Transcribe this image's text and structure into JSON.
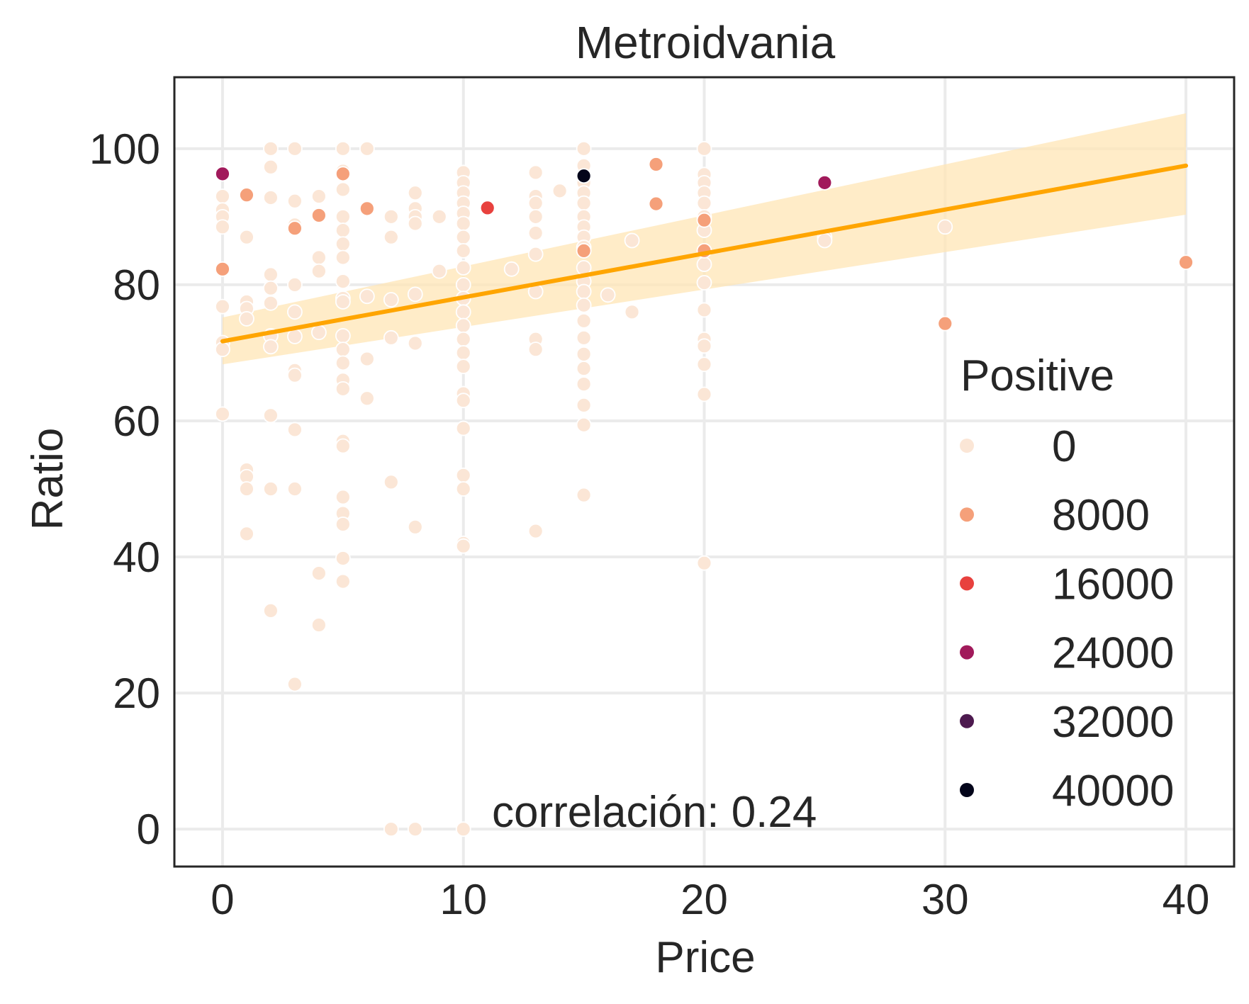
{
  "chart_data": {
    "type": "scatter",
    "title": "Metroidvania",
    "xlabel": "Price",
    "ylabel": "Ratio",
    "xlim": [
      -2,
      42
    ],
    "ylim": [
      -5.5,
      110.5
    ],
    "xticks": [
      0,
      10,
      20,
      30,
      40
    ],
    "yticks": [
      0,
      20,
      40,
      60,
      80,
      100
    ],
    "grid": true,
    "annotation": "correlación: 0.24",
    "colors": {
      "c0": "#fbe6d6",
      "c8000": "#f5a07a",
      "c16000": "#e8413e",
      "c24000": "#a11a5b",
      "c32000": "#4d1a4f",
      "c40000": "#03051a",
      "line": "#ffa500",
      "band": "#ffe6b5",
      "grid": "#ebebeb",
      "axis": "#262626"
    },
    "legend": {
      "title": "Positive",
      "position": "lower-right",
      "entries": [
        {
          "label": "0",
          "color": "#fbe6d6"
        },
        {
          "label": "8000",
          "color": "#f5a07a"
        },
        {
          "label": "16000",
          "color": "#e8413e"
        },
        {
          "label": "24000",
          "color": "#a11a5b"
        },
        {
          "label": "32000",
          "color": "#4d1a4f"
        },
        {
          "label": "40000",
          "color": "#03051a"
        }
      ]
    },
    "regression": {
      "x": [
        0,
        40
      ],
      "y": [
        71.7,
        97.5
      ],
      "ci_lower": [
        68.3,
        90.3
      ],
      "ci_upper": [
        75.2,
        105.2
      ]
    },
    "points": [
      [
        0,
        96.3,
        "c24000"
      ],
      [
        0,
        93,
        "c0"
      ],
      [
        0,
        91,
        "c0"
      ],
      [
        0,
        90,
        "c0"
      ],
      [
        0,
        88.5,
        "c0"
      ],
      [
        0,
        82.3,
        "c8000"
      ],
      [
        0,
        76.8,
        "c0"
      ],
      [
        0,
        71.5,
        "c0"
      ],
      [
        0,
        70.5,
        "c0"
      ],
      [
        0,
        61,
        "c0"
      ],
      [
        1,
        93.2,
        "c8000"
      ],
      [
        1,
        87,
        "c0"
      ],
      [
        1,
        77.5,
        "c0"
      ],
      [
        1,
        76.5,
        "c0"
      ],
      [
        1,
        75,
        "c0"
      ],
      [
        1,
        52.8,
        "c0"
      ],
      [
        1,
        51.8,
        "c0"
      ],
      [
        1,
        50,
        "c0"
      ],
      [
        1,
        43.4,
        "c0"
      ],
      [
        2,
        100,
        "c0"
      ],
      [
        2,
        97.3,
        "c0"
      ],
      [
        2,
        92.8,
        "c0"
      ],
      [
        2,
        81.5,
        "c0"
      ],
      [
        2,
        79.5,
        "c0"
      ],
      [
        2,
        77.3,
        "c0"
      ],
      [
        2,
        72.5,
        "c0"
      ],
      [
        2,
        70.9,
        "c0"
      ],
      [
        2,
        60.8,
        "c0"
      ],
      [
        2,
        50,
        "c0"
      ],
      [
        2,
        32.1,
        "c0"
      ],
      [
        3,
        100,
        "c0"
      ],
      [
        3,
        92.3,
        "c0"
      ],
      [
        3,
        88.8,
        "c0"
      ],
      [
        3,
        88.3,
        "c8000"
      ],
      [
        3,
        80,
        "c0"
      ],
      [
        3,
        76,
        "c0"
      ],
      [
        3,
        72.4,
        "c0"
      ],
      [
        3,
        67.4,
        "c0"
      ],
      [
        3,
        66.7,
        "c0"
      ],
      [
        3,
        58.7,
        "c0"
      ],
      [
        3,
        50,
        "c0"
      ],
      [
        3,
        21.3,
        "c0"
      ],
      [
        4,
        93,
        "c0"
      ],
      [
        4,
        90.2,
        "c8000"
      ],
      [
        4,
        84,
        "c0"
      ],
      [
        4,
        82,
        "c0"
      ],
      [
        4,
        73,
        "c0"
      ],
      [
        4,
        37.6,
        "c0"
      ],
      [
        4,
        30,
        "c0"
      ],
      [
        5,
        100,
        "c0"
      ],
      [
        5,
        96.7,
        "c0"
      ],
      [
        5,
        96.3,
        "c8000"
      ],
      [
        5,
        94,
        "c0"
      ],
      [
        5,
        90,
        "c0"
      ],
      [
        5,
        88,
        "c0"
      ],
      [
        5,
        86,
        "c0"
      ],
      [
        5,
        84,
        "c0"
      ],
      [
        5,
        80.5,
        "c0"
      ],
      [
        5,
        78,
        "c0"
      ],
      [
        5,
        77.5,
        "c0"
      ],
      [
        5,
        72.5,
        "c0"
      ],
      [
        5,
        70.5,
        "c0"
      ],
      [
        5,
        68.5,
        "c0"
      ],
      [
        5,
        66,
        "c0"
      ],
      [
        5,
        64.7,
        "c0"
      ],
      [
        5,
        57,
        "c0"
      ],
      [
        5,
        56.3,
        "c0"
      ],
      [
        5,
        48.8,
        "c0"
      ],
      [
        5,
        46.4,
        "c0"
      ],
      [
        5,
        44.8,
        "c0"
      ],
      [
        5,
        39.8,
        "c0"
      ],
      [
        5,
        36.4,
        "c0"
      ],
      [
        6,
        100,
        "c0"
      ],
      [
        6,
        91.2,
        "c8000"
      ],
      [
        6,
        78.3,
        "c0"
      ],
      [
        6,
        69.1,
        "c0"
      ],
      [
        6,
        63.3,
        "c0"
      ],
      [
        7,
        90,
        "c0"
      ],
      [
        7,
        87,
        "c0"
      ],
      [
        7,
        77.8,
        "c0"
      ],
      [
        7,
        72.2,
        "c0"
      ],
      [
        7,
        51,
        "c0"
      ],
      [
        7,
        0,
        "c0"
      ],
      [
        8,
        93.5,
        "c0"
      ],
      [
        8,
        91.2,
        "c0"
      ],
      [
        8,
        90,
        "c0"
      ],
      [
        8,
        89,
        "c0"
      ],
      [
        8,
        78.6,
        "c0"
      ],
      [
        8,
        71.4,
        "c0"
      ],
      [
        8,
        44.4,
        "c0"
      ],
      [
        8,
        0,
        "c0"
      ],
      [
        9,
        90,
        "c0"
      ],
      [
        9,
        82,
        "c0"
      ],
      [
        10,
        96.5,
        "c0"
      ],
      [
        10,
        95,
        "c0"
      ],
      [
        10,
        93.5,
        "c0"
      ],
      [
        10,
        92,
        "c0"
      ],
      [
        10,
        90.5,
        "c0"
      ],
      [
        10,
        89,
        "c0"
      ],
      [
        10,
        87,
        "c0"
      ],
      [
        10,
        85,
        "c0"
      ],
      [
        10,
        82.5,
        "c0"
      ],
      [
        10,
        80,
        "c0"
      ],
      [
        10,
        78,
        "c0"
      ],
      [
        10,
        76,
        "c0"
      ],
      [
        10,
        74,
        "c0"
      ],
      [
        10,
        72,
        "c0"
      ],
      [
        10,
        70,
        "c0"
      ],
      [
        10,
        68,
        "c0"
      ],
      [
        10,
        64,
        "c0"
      ],
      [
        10,
        63,
        "c0"
      ],
      [
        10,
        58.9,
        "c0"
      ],
      [
        10,
        52,
        "c0"
      ],
      [
        10,
        50,
        "c0"
      ],
      [
        10,
        42,
        "c0"
      ],
      [
        10,
        41.6,
        "c0"
      ],
      [
        10,
        0,
        "c0"
      ],
      [
        11,
        91.3,
        "c16000"
      ],
      [
        12,
        82.3,
        "c0"
      ],
      [
        13,
        96.5,
        "c0"
      ],
      [
        13,
        93,
        "c0"
      ],
      [
        13,
        92,
        "c0"
      ],
      [
        13,
        90,
        "c0"
      ],
      [
        13,
        87.6,
        "c0"
      ],
      [
        13,
        84.5,
        "c0"
      ],
      [
        13,
        79,
        "c0"
      ],
      [
        13,
        72,
        "c0"
      ],
      [
        13,
        70.5,
        "c0"
      ],
      [
        13,
        43.8,
        "c0"
      ],
      [
        14,
        93.8,
        "c0"
      ],
      [
        15,
        100,
        "c0"
      ],
      [
        15,
        97.5,
        "c0"
      ],
      [
        15,
        96,
        "c40000"
      ],
      [
        15,
        95,
        "c0"
      ],
      [
        15,
        93.5,
        "c0"
      ],
      [
        15,
        92,
        "c0"
      ],
      [
        15,
        90,
        "c0"
      ],
      [
        15,
        88.5,
        "c0"
      ],
      [
        15,
        87,
        "c0"
      ],
      [
        15,
        85.5,
        "c0"
      ],
      [
        15,
        85,
        "c8000"
      ],
      [
        15,
        82.5,
        "c0"
      ],
      [
        15,
        80.5,
        "c0"
      ],
      [
        15,
        79,
        "c0"
      ],
      [
        15,
        77,
        "c0"
      ],
      [
        15,
        74.7,
        "c0"
      ],
      [
        15,
        72.2,
        "c0"
      ],
      [
        15,
        69.8,
        "c0"
      ],
      [
        15,
        67.7,
        "c0"
      ],
      [
        15,
        65.4,
        "c0"
      ],
      [
        15,
        62.3,
        "c0"
      ],
      [
        15,
        59.4,
        "c0"
      ],
      [
        15,
        49.1,
        "c0"
      ],
      [
        16,
        78.5,
        "c0"
      ],
      [
        17,
        86.5,
        "c0"
      ],
      [
        17,
        76,
        "c0"
      ],
      [
        18,
        97.7,
        "c8000"
      ],
      [
        18,
        91.9,
        "c8000"
      ],
      [
        20,
        100,
        "c0"
      ],
      [
        20,
        96.2,
        "c0"
      ],
      [
        20,
        95,
        "c0"
      ],
      [
        20,
        93.5,
        "c0"
      ],
      [
        20,
        92,
        "c0"
      ],
      [
        20,
        90,
        "c0"
      ],
      [
        20,
        89.5,
        "c8000"
      ],
      [
        20,
        88,
        "c0"
      ],
      [
        20,
        85,
        "c8000"
      ],
      [
        20,
        83,
        "c0"
      ],
      [
        20,
        80.3,
        "c0"
      ],
      [
        20,
        76.3,
        "c0"
      ],
      [
        20,
        72,
        "c0"
      ],
      [
        20,
        71,
        "c0"
      ],
      [
        20,
        68.3,
        "c0"
      ],
      [
        20,
        63.9,
        "c0"
      ],
      [
        20,
        39.1,
        "c0"
      ],
      [
        25,
        95,
        "c24000"
      ],
      [
        25,
        87,
        "c0"
      ],
      [
        25,
        86.5,
        "c0"
      ],
      [
        30,
        88.5,
        "c0"
      ],
      [
        30,
        74.3,
        "c8000"
      ],
      [
        40,
        83.3,
        "c8000"
      ]
    ]
  }
}
